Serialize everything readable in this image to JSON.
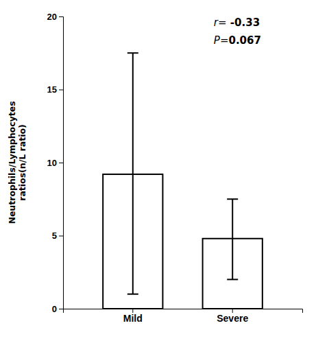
{
  "chart_data": {
    "type": "bar",
    "categories": [
      "Mild",
      "Severe"
    ],
    "values": [
      9.2,
      4.8
    ],
    "error_upper": [
      8.3,
      2.7
    ],
    "error_lower": [
      8.2,
      2.8
    ],
    "color": "#ffffff",
    "ylabel": "Neutrophils/Lymphocytes\nratios(n/L ratio)",
    "ylim": [
      0,
      20
    ],
    "yticks": [
      0,
      5,
      10,
      15,
      20
    ],
    "annotations": [
      "r= -0.33",
      "P=0.067"
    ],
    "grid": false
  }
}
